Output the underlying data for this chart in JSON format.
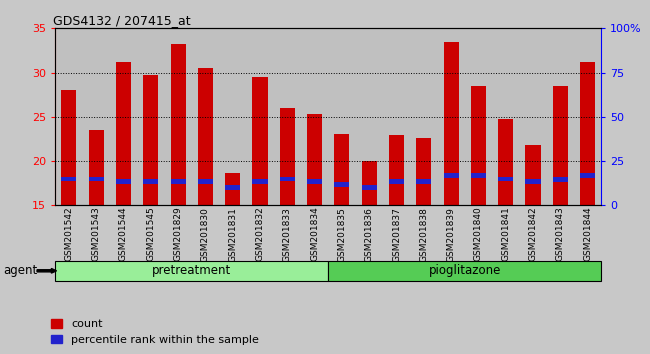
{
  "title": "GDS4132 / 207415_at",
  "samples": [
    "GSM201542",
    "GSM201543",
    "GSM201544",
    "GSM201545",
    "GSM201829",
    "GSM201830",
    "GSM201831",
    "GSM201832",
    "GSM201833",
    "GSM201834",
    "GSM201835",
    "GSM201836",
    "GSM201837",
    "GSM201838",
    "GSM201839",
    "GSM201840",
    "GSM201841",
    "GSM201842",
    "GSM201843",
    "GSM201844"
  ],
  "counts": [
    28.0,
    23.5,
    31.2,
    29.7,
    33.2,
    30.5,
    18.7,
    29.5,
    26.0,
    25.3,
    23.1,
    20.0,
    23.0,
    22.6,
    33.5,
    28.5,
    24.7,
    21.8,
    28.5,
    31.2
  ],
  "percentile_ranks": [
    17.7,
    17.7,
    17.4,
    17.4,
    17.4,
    17.4,
    16.7,
    17.4,
    17.7,
    17.4,
    17.1,
    16.7,
    17.4,
    17.4,
    18.1,
    18.1,
    17.7,
    17.4,
    17.6,
    18.1
  ],
  "percentile_heights": [
    0.55,
    0.55,
    0.55,
    0.55,
    0.55,
    0.55,
    0.55,
    0.55,
    0.55,
    0.55,
    0.55,
    0.55,
    0.55,
    0.55,
    0.55,
    0.55,
    0.55,
    0.55,
    0.55,
    0.55
  ],
  "bar_color": "#cc0000",
  "percentile_color": "#2222cc",
  "ylim": [
    15,
    35
  ],
  "yticks": [
    15,
    20,
    25,
    30,
    35
  ],
  "y2lim": [
    0,
    100
  ],
  "y2ticks": [
    0,
    25,
    50,
    75,
    100
  ],
  "y2ticklabels": [
    "0",
    "25",
    "50",
    "75",
    "100%"
  ],
  "groups": [
    {
      "text": "pretreatment",
      "start": 0,
      "end": 10,
      "color": "#99ee99"
    },
    {
      "text": "pioglitazone",
      "start": 10,
      "end": 20,
      "color": "#55cc55"
    }
  ],
  "agent_label": "agent",
  "legend_items": [
    {
      "color": "#cc0000",
      "label": "count"
    },
    {
      "color": "#2222cc",
      "label": "percentile rank within the sample"
    }
  ],
  "bg_color": "#c8c8c8",
  "col_bg_color": "#c0c0c0",
  "plot_bg": "#ffffff",
  "bar_width": 0.55
}
